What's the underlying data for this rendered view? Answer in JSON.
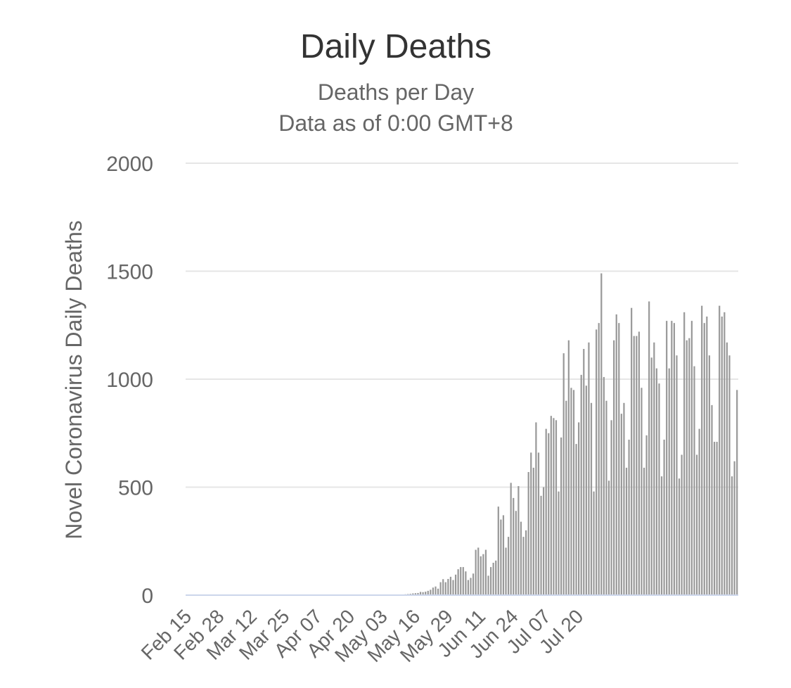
{
  "chart_data": {
    "type": "bar",
    "title": "Daily Deaths",
    "subtitle_lines": [
      "Deaths per Day",
      "Data as of 0:00 GMT+8"
    ],
    "xlabel": "",
    "ylabel": "Novel Coronavirus Daily Deaths",
    "ylim": [
      0,
      2000
    ],
    "yticks": [
      "0",
      "500",
      "1000",
      "1500",
      "2000"
    ],
    "grid": true,
    "legend": "none",
    "bar_color": "#999999",
    "x_tick_labels": [
      "Feb 15",
      "Feb 28",
      "Mar 12",
      "Mar 25",
      "Apr 07",
      "Apr 20",
      "May 03",
      "May 16",
      "May 29",
      "Jun 11",
      "Jun 24",
      "Jul 07",
      "Jul 20"
    ],
    "start_date": "Feb 15",
    "values": [
      0,
      0,
      0,
      0,
      0,
      0,
      0,
      0,
      0,
      0,
      0,
      0,
      0,
      0,
      0,
      0,
      0,
      0,
      0,
      0,
      0,
      0,
      0,
      0,
      0,
      0,
      0,
      0,
      0,
      0,
      0,
      0,
      0,
      0,
      0,
      0,
      0,
      0,
      0,
      0,
      0,
      0,
      0,
      0,
      1,
      0,
      0,
      0,
      0,
      0,
      0,
      0,
      0,
      0,
      0,
      0,
      0,
      0,
      0,
      0,
      0,
      0,
      0,
      0,
      0,
      0,
      0,
      0,
      0,
      0,
      0,
      0,
      0,
      0,
      0,
      0,
      0,
      0,
      0,
      0,
      0,
      1,
      1,
      1,
      2,
      2,
      3,
      4,
      5,
      6,
      8,
      9,
      10,
      15,
      14,
      16,
      20,
      25,
      35,
      40,
      30,
      60,
      74,
      60,
      75,
      85,
      70,
      95,
      120,
      130,
      130,
      110,
      70,
      80,
      100,
      210,
      220,
      180,
      190,
      210,
      90,
      130,
      150,
      160,
      410,
      350,
      370,
      220,
      270,
      520,
      450,
      390,
      505,
      340,
      270,
      300,
      570,
      660,
      590,
      800,
      660,
      460,
      500,
      770,
      750,
      830,
      820,
      810,
      480,
      730,
      1120,
      900,
      1180,
      960,
      950,
      700,
      800,
      1020,
      1140,
      970,
      1170,
      890,
      480,
      1230,
      1260,
      1490,
      1010,
      900,
      530,
      810,
      1180,
      1300,
      1260,
      840,
      890,
      590,
      720,
      1330,
      1200,
      1200,
      1220,
      960,
      590,
      740,
      1360,
      1100,
      1170,
      1050,
      980,
      550,
      720,
      1270,
      1050,
      1270,
      1260,
      1110,
      540,
      650,
      1310,
      1180,
      1190,
      1270,
      1060,
      650,
      770,
      1340,
      1260,
      1290,
      1110,
      880,
      710,
      710,
      1340,
      1290,
      1310,
      1170,
      1110,
      550,
      620,
      950
    ]
  }
}
